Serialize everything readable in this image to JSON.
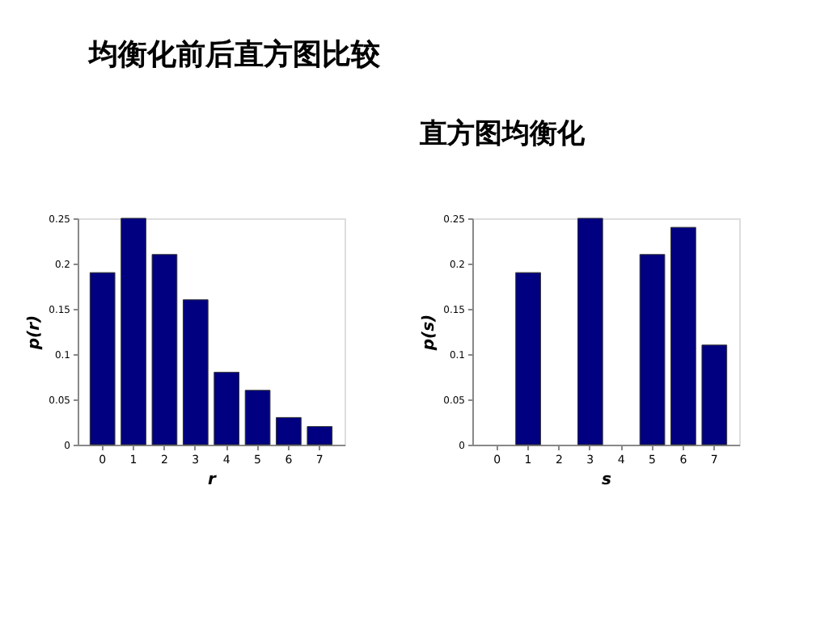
{
  "chart_data": [
    {
      "type": "bar",
      "title": "均衡化前后直方图比较",
      "categories": [
        "0",
        "1",
        "2",
        "3",
        "4",
        "5",
        "6",
        "7"
      ],
      "values": [
        0.19,
        0.25,
        0.21,
        0.16,
        0.08,
        0.06,
        0.03,
        0.02
      ],
      "color": "#000080",
      "xlabel": "r",
      "ylabel": "p(r)",
      "ylim": [
        0,
        0.25
      ],
      "yticks": [
        0,
        0.05,
        0.1,
        0.15,
        0.2,
        0.25
      ],
      "grid": false
    },
    {
      "type": "bar",
      "title": "直方图均衡化",
      "categories": [
        "0",
        "1",
        "2",
        "3",
        "4",
        "5",
        "6",
        "7"
      ],
      "values": [
        null,
        0.19,
        null,
        0.25,
        null,
        0.21,
        0.24,
        0.11
      ],
      "color": "#000080",
      "xlabel": "s",
      "ylabel": "p(s)",
      "ylim": [
        0,
        0.25
      ],
      "yticks": [
        0,
        0.05,
        0.1,
        0.15,
        0.2,
        0.25
      ],
      "grid": false
    }
  ]
}
